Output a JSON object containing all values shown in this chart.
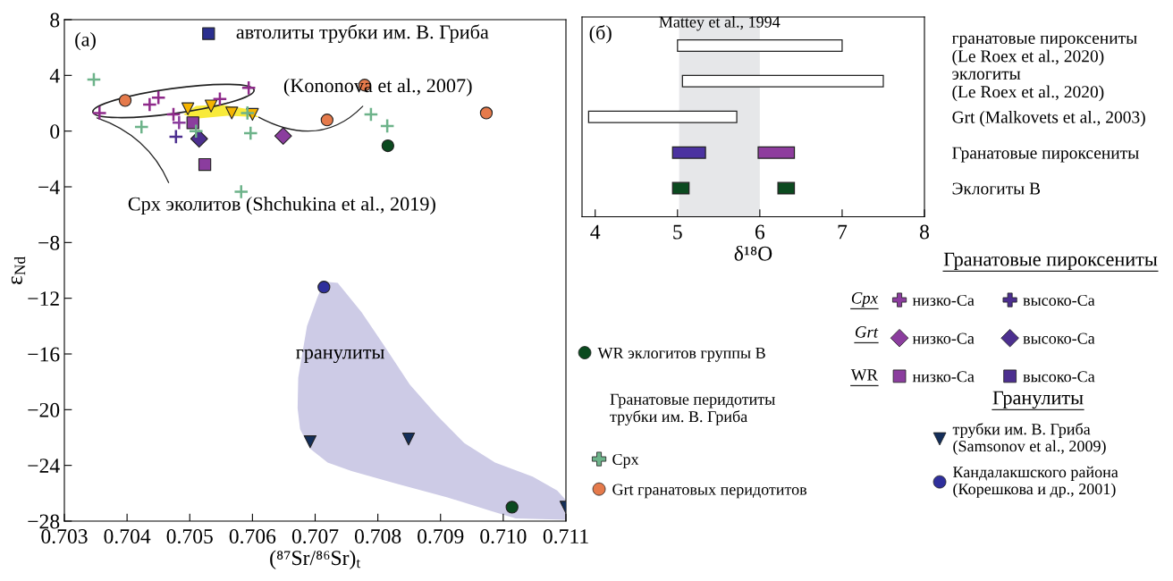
{
  "chart_data": [
    {
      "type": "scatter",
      "title": "(a)",
      "xlabel": "(⁸⁷Sr/⁸⁶Sr)$_{t}$",
      "ylabel": "ε$_{Nd}$",
      "xlim": [
        0.703,
        0.711
      ],
      "ylim": [
        -28,
        8
      ],
      "xticks": [
        0.703,
        0.704,
        0.705,
        0.706,
        0.707,
        0.708,
        0.709,
        {
          "value": 0.71,
          "label": "0.710"
        },
        0.711
      ],
      "yticks": [
        {
          "value": -28,
          "label": "−28"
        },
        {
          "value": -24,
          "label": "−24"
        },
        {
          "value": -20,
          "label": "−20"
        },
        {
          "value": -16,
          "label": "−16"
        },
        {
          "value": -12,
          "label": "−12"
        },
        {
          "value": -8,
          "label": "−8"
        },
        {
          "value": -4,
          "label": "−4"
        },
        0,
        4,
        8
      ],
      "legend": "right",
      "grid": false,
      "series": [
        {
          "name": "Cpx",
          "type": "scatter",
          "marker": "cross",
          "color": "#6db38a",
          "x": [
            0.70347,
            0.70423,
            0.70592,
            0.70597,
            0.70789,
            0.70815,
            0.70582,
            0.7051
          ],
          "values": [
            3.7,
            0.3,
            1.3,
            -0.15,
            1.2,
            0.37,
            -4.35,
            0.0
          ]
        },
        {
          "name": "Grt гранатовых перидотитов",
          "type": "scatter",
          "marker": "circle",
          "color": "#e57a4b",
          "x": [
            0.70397,
            0.70779,
            0.70719,
            0.70973
          ],
          "values": [
            2.2,
            3.3,
            0.8,
            1.3
          ]
        },
        {
          "type": "scatter",
          "marker": "cross",
          "color": "#8e2a8a",
          "x": [
            0.70356,
            0.70436,
            0.7045,
            0.70548,
            0.70594,
            0.70474
          ],
          "values": [
            1.3,
            1.9,
            2.4,
            2.3,
            3.1,
            1.2
          ]
        },
        {
          "name": "низко-Ca",
          "type": "scatter",
          "marker": "cross",
          "color": "#8b3d9e",
          "x": [
            0.70483
          ],
          "values": [
            0.6
          ]
        },
        {
          "name": "высоко-Ca",
          "type": "scatter",
          "marker": "cross",
          "color": "#4c2f8f",
          "x": [
            0.70478
          ],
          "values": [
            -0.4
          ]
        },
        {
          "name": "низко-Ca",
          "type": "scatter",
          "marker": "diamond",
          "color": "#8b3d9e",
          "x": [
            0.70649
          ],
          "values": [
            -0.35
          ]
        },
        {
          "name": "высоко-Ca",
          "type": "scatter",
          "marker": "diamond",
          "color": "#4c2f8f",
          "x": [
            0.70515
          ],
          "values": [
            -0.55
          ]
        },
        {
          "name": "низко-Ca",
          "type": "scatter",
          "marker": "square",
          "color": "#8b3d9e",
          "x": [
            0.70505,
            0.70524
          ],
          "values": [
            0.6,
            -2.4
          ]
        },
        {
          "name": "высоко-Ca",
          "type": "scatter",
          "marker": "square",
          "color": "#4c2f8f"
        },
        {
          "name": "автолиты трубки им. В. Гриба",
          "type": "scatter",
          "marker": "square",
          "color": "#2b2f8f",
          "x": [
            0.7053
          ],
          "values": [
            7.0
          ]
        },
        {
          "type": "scatter",
          "marker": "triangle",
          "color": "#f5b400",
          "x": [
            0.70497,
            0.70534,
            0.70567,
            0.706
          ],
          "values": [
            1.6,
            1.8,
            1.3,
            1.2
          ]
        },
        {
          "name": "WR эклогитов группы В",
          "type": "scatter",
          "marker": "circle",
          "color": "#0b4a1f",
          "x": [
            0.70816,
            0.71014
          ],
          "values": [
            -1.05,
            -27.0
          ]
        },
        {
          "name": "трубки им. В. Гриба\n(Samsonov et al., 2009)",
          "type": "scatter",
          "marker": "triangle",
          "color": "#132e5a",
          "x": [
            0.70692,
            0.70849,
            0.711
          ],
          "values": [
            -22.3,
            -22.1,
            -27.0
          ]
        },
        {
          "name": "Кандалакшского района\n(Корешкова и др., 2001)",
          "type": "scatter",
          "marker": "circle",
          "color": "#2f2f9c",
          "x": [
            0.70714
          ],
          "values": [
            -11.2
          ]
        },
        {
          "type": "area",
          "color": "#cdcbe6",
          "x": [
            0.70714,
            0.70736,
            0.70774,
            0.70807,
            0.70851,
            0.70894,
            0.70938,
            0.70987,
            0.71047,
            0.71086,
            0.711,
            0.711,
            0.7102,
            0.70982,
            0.70911,
            0.70829,
            0.70758,
            0.7072,
            0.70692,
            0.70676,
            0.70672,
            0.70673,
            0.70687,
            0.70703
          ],
          "values": [
            -10.8,
            -10.9,
            -13.0,
            -15.2,
            -18.2,
            -20.4,
            -22.4,
            -23.8,
            -24.8,
            -25.8,
            -26.5,
            -27.9,
            -27.8,
            -27.3,
            -26.3,
            -25.3,
            -24.4,
            -23.8,
            -22.8,
            -21.4,
            -19.9,
            -17.7,
            -14.0,
            -12.0
          ]
        },
        {
          "type": "area",
          "color": "#f8ea3a",
          "x": [
            0.7049,
            0.7051,
            0.7055,
            0.7059,
            0.7061,
            0.7056,
            0.7051
          ],
          "values": [
            1.2,
            1.8,
            1.9,
            1.6,
            1.0,
            1.1,
            0.9
          ]
        }
      ],
      "annotations": [
        {
          "text": "(Kononova et al., 2007)",
          "x": 0.7061,
          "y": 1.0
        },
        {
          "text": "Cpx эколитов (Shchukina et al., 2019)",
          "x": 0.70352,
          "y": 0.95
        },
        "гранулиты",
        "Гранатовые пироксениты",
        "Cpx",
        "Grt",
        "WR",
        "Гранатовые перидотиты\nтрубки им. В. Гриба",
        "Гранулиты"
      ]
    },
    {
      "type": "bar",
      "orientation": "horizontal",
      "title": "(б)",
      "xlabel": "δ¹⁸O",
      "xlim": [
        3.84,
        8
      ],
      "xticks": [
        4,
        5,
        6,
        7,
        8
      ],
      "categories": [
        "гранатовые пироксениты\n(Le Roex et al., 2020)",
        "эклогиты\n(Le Roex et al., 2020)",
        "Grt (Malkovets et al., 2003)",
        "Гранатовые пироксениты",
        "Эклогиты В"
      ],
      "bands": [
        {
          "axis": "x",
          "from": 5.02,
          "to": 6.0,
          "label": "Mattey et al., 1994",
          "color": "#e6e7e9"
        }
      ],
      "series": [
        {
          "colors": [
            "#ffffff",
            "#ffffff",
            "#ffffff",
            null,
            null
          ],
          "base": [
            5.0,
            5.06,
            3.92,
            null,
            null
          ],
          "values": [
            2.0,
            2.44,
            1.8,
            null,
            null
          ]
        },
        {
          "colors": [
            null,
            null,
            null,
            "#4b32a0",
            "#0b4a1f"
          ],
          "base": [
            null,
            null,
            null,
            4.94,
            4.94
          ],
          "values": [
            null,
            null,
            null,
            0.4,
            0.2
          ]
        },
        {
          "colors": [
            null,
            null,
            null,
            "#8e3d9e",
            "#0b4a1f"
          ],
          "base": [
            null,
            null,
            null,
            5.98,
            6.22
          ],
          "values": [
            null,
            null,
            null,
            0.44,
            0.2
          ]
        }
      ]
    }
  ]
}
